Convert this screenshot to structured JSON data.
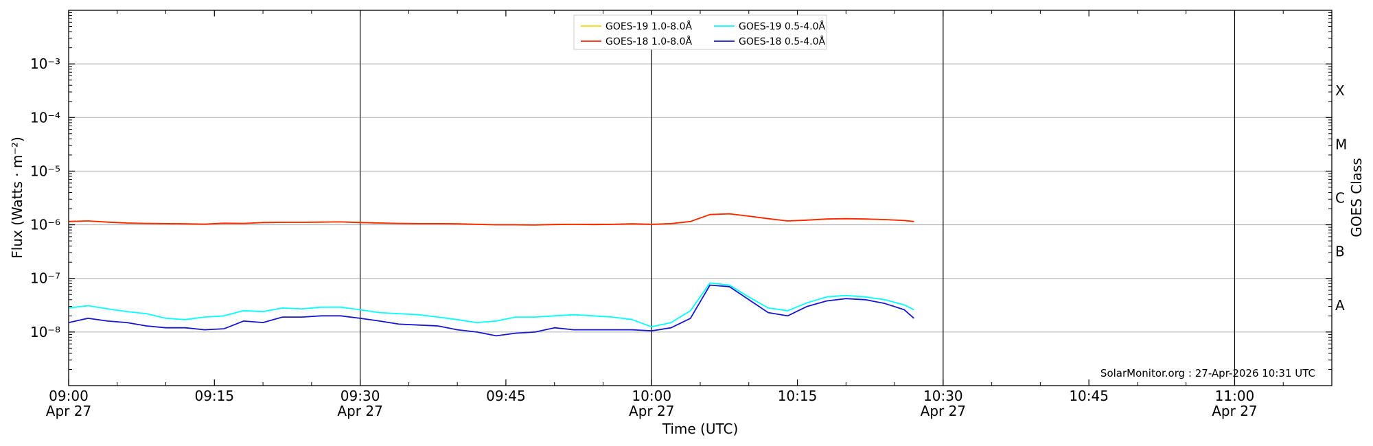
{
  "chart_data": {
    "type": "line",
    "xlabel": "Time (UTC)",
    "ylabel": "Flux (Watts · m⁻²)",
    "ylabel_right": "GOES Class",
    "x_range": [
      "09:00",
      "11:10"
    ],
    "ylim": [
      1e-09,
      0.01
    ],
    "y_scale": "log",
    "grid": "horizontal at decades",
    "legend_placement": "top-center",
    "watermark": "SolarMonitor.org : 27-Apr-2026 10:31 UTC",
    "x_ticks": [
      {
        "t": "09:00",
        "label": "09:00",
        "date": "Apr 27"
      },
      {
        "t": "09:15",
        "label": "09:15",
        "date": ""
      },
      {
        "t": "09:30",
        "label": "09:30",
        "date": "Apr 27"
      },
      {
        "t": "09:45",
        "label": "09:45",
        "date": ""
      },
      {
        "t": "10:00",
        "label": "10:00",
        "date": "Apr 27"
      },
      {
        "t": "10:15",
        "label": "10:15",
        "date": ""
      },
      {
        "t": "10:30",
        "label": "10:30",
        "date": "Apr 27"
      },
      {
        "t": "10:45",
        "label": "10:45",
        "date": ""
      },
      {
        "t": "11:00",
        "label": "11:00",
        "date": "Apr 27"
      }
    ],
    "vertical_markers": [
      "09:30",
      "10:00",
      "10:30",
      "11:00"
    ],
    "y_ticks": [
      {
        "value": 1e-08,
        "label": "10⁻⁸"
      },
      {
        "value": 1e-07,
        "label": "10⁻⁷"
      },
      {
        "value": 1e-06,
        "label": "10⁻⁶"
      },
      {
        "value": 1e-05,
        "label": "10⁻⁵"
      },
      {
        "value": 0.0001,
        "label": "10⁻⁴"
      },
      {
        "value": 0.001,
        "label": "10⁻³"
      }
    ],
    "goes_classes": [
      {
        "label": "A",
        "value": 3.16e-08
      },
      {
        "label": "B",
        "value": 3.16e-07
      },
      {
        "label": "C",
        "value": 3.16e-06
      },
      {
        "label": "M",
        "value": 3.16e-05
      },
      {
        "label": "X",
        "value": 0.000316
      }
    ],
    "x": [
      "09:00",
      "09:02",
      "09:04",
      "09:06",
      "09:08",
      "09:10",
      "09:12",
      "09:14",
      "09:16",
      "09:18",
      "09:20",
      "09:22",
      "09:24",
      "09:26",
      "09:28",
      "09:30",
      "09:32",
      "09:34",
      "09:36",
      "09:38",
      "09:40",
      "09:42",
      "09:44",
      "09:46",
      "09:48",
      "09:50",
      "09:52",
      "09:54",
      "09:56",
      "09:58",
      "10:00",
      "10:02",
      "10:04",
      "10:06",
      "10:08",
      "10:10",
      "10:12",
      "10:14",
      "10:16",
      "10:18",
      "10:20",
      "10:22",
      "10:24",
      "10:26",
      "10:27"
    ],
    "series": [
      {
        "name": "GOES-19 1.0-8.0Å",
        "color": "#ffd700",
        "values": [
          1.15e-06,
          1.18e-06,
          1.12e-06,
          1.08e-06,
          1.06e-06,
          1.05e-06,
          1.04e-06,
          1.03e-06,
          1.07e-06,
          1.06e-06,
          1.1e-06,
          1.11e-06,
          1.11e-06,
          1.12e-06,
          1.13e-06,
          1.1e-06,
          1.08e-06,
          1.06e-06,
          1.05e-06,
          1.05e-06,
          1.04e-06,
          1.02e-06,
          1e-06,
          1e-06,
          9.9e-07,
          1.01e-06,
          1.02e-06,
          1.01e-06,
          1.02e-06,
          1.04e-06,
          1.02e-06,
          1.05e-06,
          1.15e-06,
          1.55e-06,
          1.6e-06,
          1.45e-06,
          1.3e-06,
          1.18e-06,
          1.22e-06,
          1.28e-06,
          1.3e-06,
          1.28e-06,
          1.25e-06,
          1.2e-06,
          1.15e-06
        ]
      },
      {
        "name": "GOES-18 1.0-8.0Å",
        "color": "#ff2200",
        "values": [
          1.15e-06,
          1.18e-06,
          1.12e-06,
          1.08e-06,
          1.06e-06,
          1.05e-06,
          1.04e-06,
          1.03e-06,
          1.07e-06,
          1.06e-06,
          1.1e-06,
          1.11e-06,
          1.11e-06,
          1.12e-06,
          1.13e-06,
          1.1e-06,
          1.08e-06,
          1.06e-06,
          1.05e-06,
          1.05e-06,
          1.04e-06,
          1.02e-06,
          1e-06,
          1e-06,
          9.9e-07,
          1.01e-06,
          1.02e-06,
          1.01e-06,
          1.02e-06,
          1.04e-06,
          1.02e-06,
          1.05e-06,
          1.15e-06,
          1.55e-06,
          1.6e-06,
          1.45e-06,
          1.3e-06,
          1.18e-06,
          1.22e-06,
          1.28e-06,
          1.3e-06,
          1.28e-06,
          1.25e-06,
          1.2e-06,
          1.15e-06
        ]
      },
      {
        "name": "GOES-19 0.5-4.0Å",
        "color": "#00ffff",
        "values": [
          2.8e-08,
          3.1e-08,
          2.7e-08,
          2.4e-08,
          2.2e-08,
          1.8e-08,
          1.7e-08,
          1.9e-08,
          2e-08,
          2.5e-08,
          2.4e-08,
          2.8e-08,
          2.7e-08,
          2.9e-08,
          2.9e-08,
          2.6e-08,
          2.3e-08,
          2.2e-08,
          2.1e-08,
          1.9e-08,
          1.7e-08,
          1.5e-08,
          1.6e-08,
          1.9e-08,
          1.9e-08,
          2e-08,
          2.1e-08,
          2e-08,
          1.9e-08,
          1.7e-08,
          1.25e-08,
          1.5e-08,
          2.5e-08,
          8.2e-08,
          7.5e-08,
          4.5e-08,
          2.8e-08,
          2.5e-08,
          3.5e-08,
          4.5e-08,
          4.8e-08,
          4.5e-08,
          4e-08,
          3.2e-08,
          2.6e-08
        ]
      },
      {
        "name": "GOES-18 0.5-4.0Å",
        "color": "#1515d0",
        "values": [
          1.5e-08,
          1.8e-08,
          1.6e-08,
          1.5e-08,
          1.3e-08,
          1.2e-08,
          1.2e-08,
          1.1e-08,
          1.15e-08,
          1.6e-08,
          1.5e-08,
          1.9e-08,
          1.9e-08,
          2e-08,
          2e-08,
          1.8e-08,
          1.6e-08,
          1.4e-08,
          1.35e-08,
          1.3e-08,
          1.1e-08,
          1e-08,
          8.5e-09,
          9.5e-09,
          1e-08,
          1.2e-08,
          1.1e-08,
          1.1e-08,
          1.1e-08,
          1.1e-08,
          1.05e-08,
          1.2e-08,
          1.8e-08,
          7.5e-08,
          7e-08,
          4e-08,
          2.3e-08,
          2e-08,
          3e-08,
          3.8e-08,
          4.2e-08,
          4e-08,
          3.4e-08,
          2.6e-08,
          1.8e-08
        ]
      }
    ]
  }
}
